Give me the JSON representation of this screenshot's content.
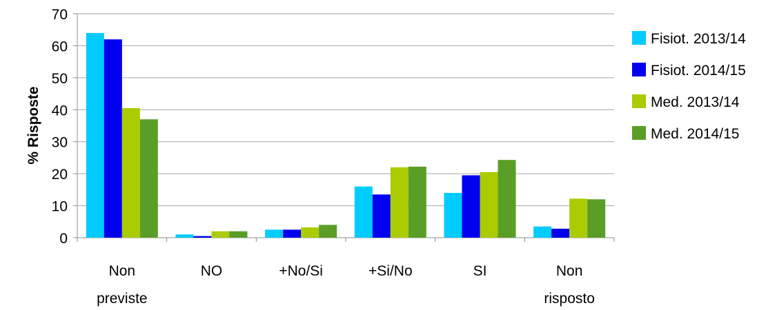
{
  "chart_data": {
    "type": "bar",
    "ylabel": "% Risposte",
    "xlabel": "",
    "ylim": [
      0,
      70
    ],
    "yticks": [
      0,
      10,
      20,
      30,
      40,
      50,
      60,
      70
    ],
    "grid": true,
    "legend_position": "right",
    "categories": [
      [
        "Non",
        "previste"
      ],
      [
        "NO"
      ],
      [
        "+No/Si"
      ],
      [
        "+Si/No"
      ],
      [
        "SI"
      ],
      [
        "Non",
        "risposto"
      ]
    ],
    "series": [
      {
        "name": "Fisiot. 2013/14",
        "color": "#00CCFF",
        "values": [
          64,
          1,
          2.5,
          16,
          14,
          3.5
        ]
      },
      {
        "name": "Fisiot. 2014/15",
        "color": "#0000EE",
        "values": [
          62,
          0.5,
          2.5,
          13.5,
          19.5,
          2.8
        ]
      },
      {
        "name": "Med. 2013/14",
        "color": "#AACC00",
        "values": [
          40.5,
          2,
          3.2,
          22,
          20.5,
          12.2
        ]
      },
      {
        "name": "Med. 2014/15",
        "color": "#5A9E28",
        "values": [
          37,
          2,
          4,
          22.2,
          24.3,
          12
        ]
      }
    ]
  }
}
